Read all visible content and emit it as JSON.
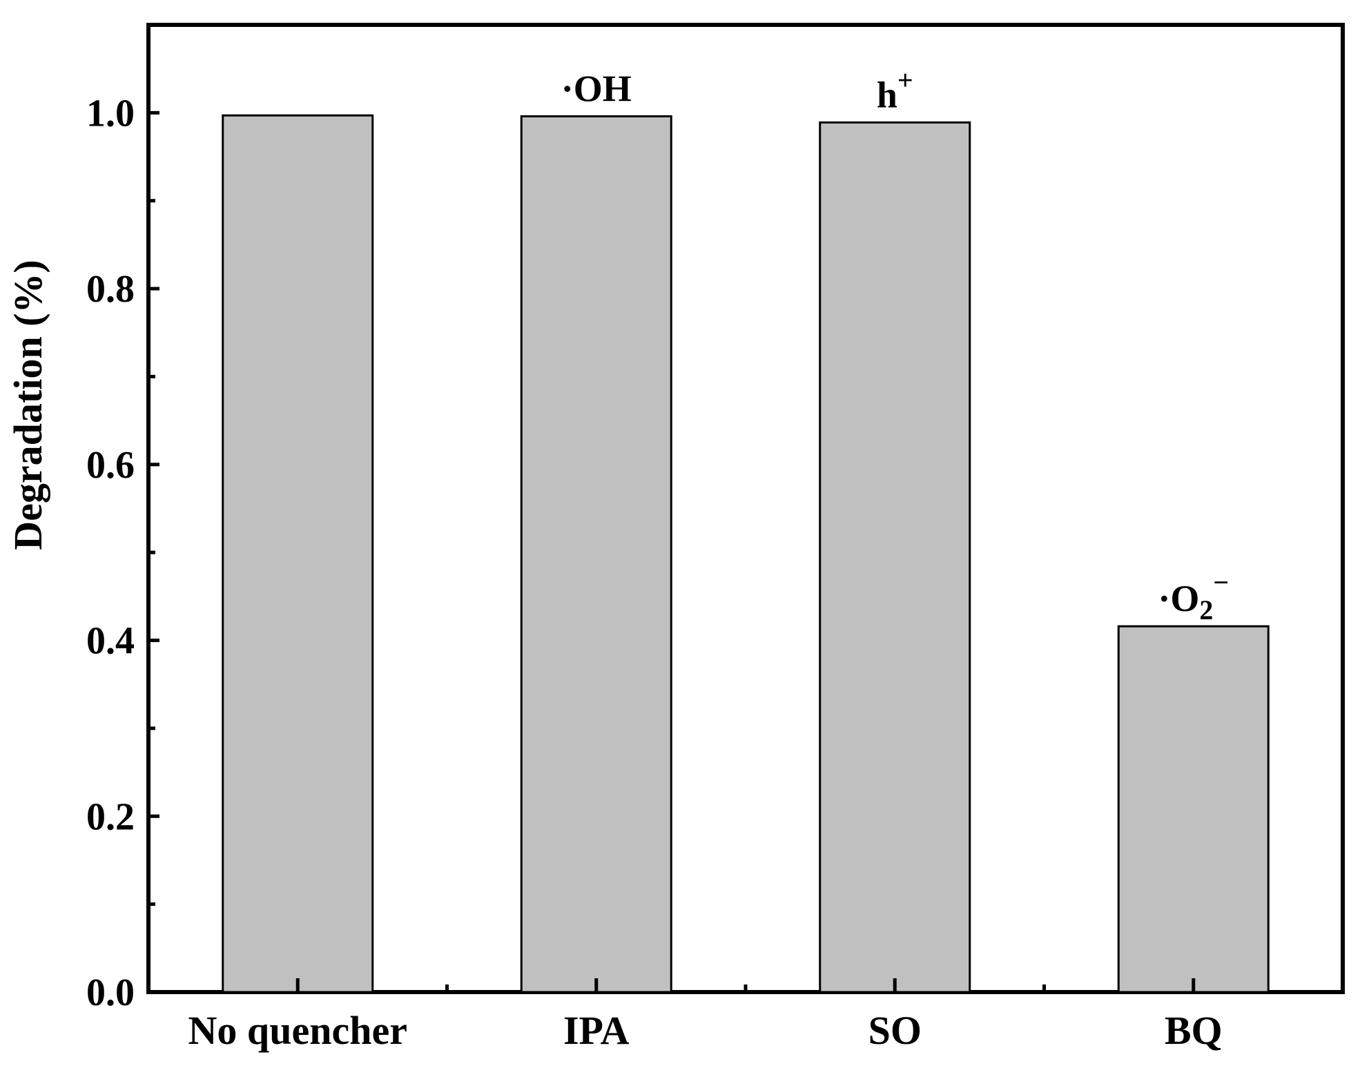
{
  "chart_data": {
    "type": "bar",
    "categories": [
      "No quencher",
      "IPA",
      "SO",
      "BQ"
    ],
    "values": [
      0.997,
      0.996,
      0.989,
      0.416
    ],
    "annotations": [
      {
        "base": "",
        "sub": "",
        "sup": ""
      },
      {
        "base": "·OH",
        "sub": "",
        "sup": ""
      },
      {
        "base": "h",
        "sub": "",
        "sup": "+"
      },
      {
        "base": "·O",
        "sub": "2",
        "sup": "−"
      }
    ],
    "ylabel": "Degradation (%)",
    "xlabel": "",
    "ylim": [
      0,
      1.1
    ],
    "yticks": [
      0.0,
      0.2,
      0.4,
      0.6,
      0.8,
      1.0
    ],
    "ytick_labels": [
      "0.0",
      "0.2",
      "0.4",
      "0.6",
      "0.8",
      "1.0"
    ],
    "yminor_step": 0.1,
    "grid": false,
    "legend": "none",
    "colors": {
      "bar_fill": "#c0c0c0",
      "bar_stroke": "#000000",
      "axis": "#000000"
    }
  }
}
